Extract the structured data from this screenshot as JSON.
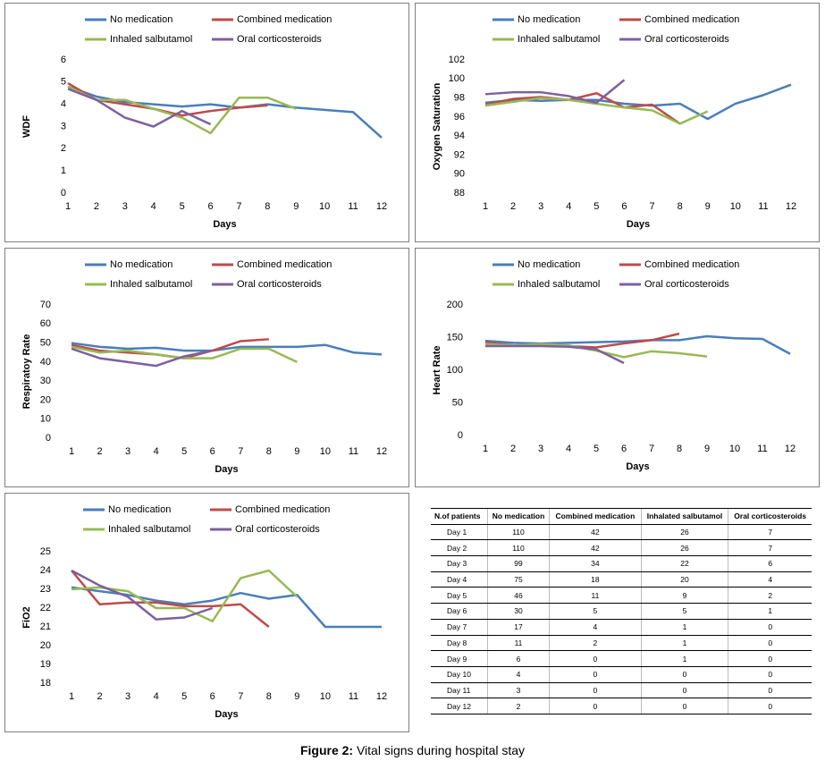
{
  "chart_data": [
    {
      "type": "line",
      "ylabel": "WDF",
      "xlabel": "Days",
      "x": [
        1,
        2,
        3,
        4,
        5,
        6,
        7,
        8,
        9,
        10,
        11,
        12
      ],
      "xlim": [
        0.5,
        12.5
      ],
      "xticks": [
        1,
        2,
        3,
        4,
        5,
        6,
        7,
        8,
        9,
        10,
        11,
        12
      ],
      "ylim": [
        0,
        6
      ],
      "yticks": [
        0,
        1,
        2,
        3,
        4,
        5,
        6
      ],
      "legend": "top",
      "series": [
        {
          "name": "No medication",
          "color": "#4a7ebb",
          "values": [
            4.8,
            4.35,
            4.1,
            4.0,
            3.9,
            4.0,
            3.85,
            4.0,
            3.85,
            3.75,
            3.65,
            2.5
          ]
        },
        {
          "name": "Combined medication",
          "color": "#be4b48",
          "values": [
            4.95,
            4.2,
            4.0,
            3.8,
            3.5,
            3.7,
            3.85,
            3.95,
            null,
            null,
            null,
            null
          ]
        },
        {
          "name": "Inhaled salbutamol",
          "color": "#98b954",
          "values": [
            4.8,
            4.2,
            4.2,
            3.8,
            3.4,
            2.7,
            4.3,
            4.3,
            3.8,
            null,
            null,
            null
          ]
        },
        {
          "name": "Oral corticosteroids",
          "color": "#7d60a0",
          "values": [
            4.7,
            4.2,
            3.4,
            3.0,
            3.7,
            3.1,
            null,
            null,
            null,
            null,
            null,
            null
          ]
        }
      ]
    },
    {
      "type": "line",
      "ylabel": "Oxygen Saturation",
      "xlabel": "Days",
      "x": [
        1,
        2,
        3,
        4,
        5,
        6,
        7,
        8,
        9,
        10,
        11,
        12
      ],
      "xlim": [
        0.5,
        12.5
      ],
      "xticks": [
        1,
        2,
        3,
        4,
        5,
        6,
        7,
        8,
        9,
        10,
        11,
        12
      ],
      "ylim": [
        88,
        102
      ],
      "yticks": [
        88,
        90,
        92,
        94,
        96,
        98,
        100,
        102
      ],
      "legend": "top",
      "series": [
        {
          "name": "No medication",
          "color": "#4a7ebb",
          "values": [
            97.5,
            97.8,
            97.7,
            97.8,
            97.8,
            97.4,
            97.2,
            97.4,
            95.8,
            97.4,
            98.3,
            99.4
          ]
        },
        {
          "name": "Combined medication",
          "color": "#be4b48",
          "values": [
            97.3,
            97.9,
            98.1,
            97.8,
            98.5,
            97.0,
            97.3,
            95.3,
            null,
            null,
            null,
            null
          ]
        },
        {
          "name": "Inhaled salbutamol",
          "color": "#98b954",
          "values": [
            97.2,
            97.6,
            98.0,
            97.8,
            97.4,
            97.0,
            96.7,
            95.3,
            96.6,
            null,
            null,
            null
          ]
        },
        {
          "name": "Oral corticosteroids",
          "color": "#7d60a0",
          "values": [
            98.4,
            98.6,
            98.6,
            98.2,
            97.5,
            99.9,
            null,
            null,
            null,
            null,
            null,
            null
          ]
        }
      ]
    },
    {
      "type": "line",
      "ylabel": "Respiratoy Rate",
      "xlabel": "Days",
      "x": [
        1,
        2,
        3,
        4,
        5,
        6,
        7,
        8,
        9,
        10,
        11,
        12
      ],
      "xlim": [
        0.5,
        12.5
      ],
      "xticks": [
        1,
        2,
        3,
        4,
        5,
        6,
        7,
        8,
        9,
        10,
        11,
        12
      ],
      "ylim": [
        0,
        70
      ],
      "yticks": [
        0,
        10,
        20,
        30,
        40,
        50,
        60,
        70
      ],
      "legend": "top",
      "series": [
        {
          "name": "No medication",
          "color": "#4a7ebb",
          "values": [
            50,
            48,
            47,
            47.5,
            46,
            46,
            48,
            48,
            48,
            49,
            45,
            44
          ]
        },
        {
          "name": "Combined medication",
          "color": "#be4b48",
          "values": [
            49,
            46,
            45,
            44,
            42,
            46,
            51,
            52,
            null,
            null,
            null,
            null
          ]
        },
        {
          "name": "Inhaled salbutamol",
          "color": "#98b954",
          "values": [
            48,
            45,
            46,
            44,
            42,
            42,
            47,
            47,
            40,
            null,
            null,
            null
          ]
        },
        {
          "name": "Oral corticosteroids",
          "color": "#7d60a0",
          "values": [
            47,
            42,
            40,
            38,
            43,
            46,
            null,
            null,
            null,
            null,
            null,
            null
          ]
        }
      ]
    },
    {
      "type": "line",
      "ylabel": "Heart Rate",
      "xlabel": "Days",
      "x": [
        1,
        2,
        3,
        4,
        5,
        6,
        7,
        8,
        9,
        10,
        11,
        12
      ],
      "xlim": [
        0.5,
        12.5
      ],
      "xticks": [
        1,
        2,
        3,
        4,
        5,
        6,
        7,
        8,
        9,
        10,
        11,
        12
      ],
      "ylim": [
        0,
        200
      ],
      "yticks": [
        0,
        50,
        100,
        150,
        200
      ],
      "legend": "top",
      "series": [
        {
          "name": "No medication",
          "color": "#4a7ebb",
          "values": [
            145,
            142,
            141,
            142,
            143,
            144,
            146,
            146,
            152,
            149,
            148,
            125
          ]
        },
        {
          "name": "Combined medication",
          "color": "#be4b48",
          "values": [
            143,
            138,
            138,
            137,
            135,
            141,
            146,
            156,
            null,
            null,
            null,
            null
          ]
        },
        {
          "name": "Inhaled salbutamol",
          "color": "#98b954",
          "values": [
            140,
            138,
            140,
            138,
            130,
            120,
            129,
            126,
            121,
            null,
            null,
            null
          ]
        },
        {
          "name": "Oral corticosteroids",
          "color": "#7d60a0",
          "values": [
            137,
            137,
            137,
            136,
            132,
            111,
            null,
            null,
            null,
            null,
            null,
            null
          ]
        }
      ]
    },
    {
      "type": "line",
      "ylabel": "FiO2",
      "xlabel": "Days",
      "x": [
        1,
        2,
        3,
        4,
        5,
        6,
        7,
        8,
        9,
        10,
        11,
        12
      ],
      "xlim": [
        0.5,
        12.5
      ],
      "xticks": [
        1,
        2,
        3,
        4,
        5,
        6,
        7,
        8,
        9,
        10,
        11,
        12
      ],
      "ylim": [
        18,
        25
      ],
      "yticks": [
        18,
        19,
        20,
        21,
        22,
        23,
        24,
        25
      ],
      "legend": "top",
      "series": [
        {
          "name": "No medication",
          "color": "#4a7ebb",
          "values": [
            23.1,
            22.9,
            22.7,
            22.4,
            22.2,
            22.4,
            22.8,
            22.5,
            22.7,
            21,
            21,
            21
          ]
        },
        {
          "name": "Combined medication",
          "color": "#be4b48",
          "values": [
            24,
            22.2,
            22.3,
            22.3,
            22.1,
            22.1,
            22.2,
            21,
            null,
            null,
            null,
            null
          ]
        },
        {
          "name": "Inhaled salbutamol",
          "color": "#98b954",
          "values": [
            23,
            23.1,
            22.9,
            22.0,
            22.0,
            21.3,
            23.6,
            24.0,
            22.6,
            null,
            null,
            null
          ]
        },
        {
          "name": "Oral corticosteroids",
          "color": "#7d60a0",
          "values": [
            24,
            23.2,
            22.6,
            21.4,
            21.5,
            22.0,
            null,
            null,
            null,
            null,
            null,
            null
          ]
        }
      ]
    }
  ],
  "table": {
    "header": [
      "N.of patients",
      "No medication",
      "Combined medication",
      "Inhalated salbutamol",
      "Oral corticosteroids"
    ],
    "rows": [
      [
        "Day 1",
        110,
        42,
        26,
        7
      ],
      [
        "Day 2",
        110,
        42,
        26,
        7
      ],
      [
        "Day 3",
        99,
        34,
        22,
        6
      ],
      [
        "Day 4",
        75,
        18,
        20,
        4
      ],
      [
        "Day 5",
        46,
        11,
        9,
        2
      ],
      [
        "Day 6",
        30,
        5,
        5,
        1
      ],
      [
        "Day 7",
        17,
        4,
        1,
        0
      ],
      [
        "Day 8",
        11,
        2,
        1,
        0
      ],
      [
        "Day 9",
        6,
        0,
        1,
        0
      ],
      [
        "Day 10",
        4,
        0,
        0,
        0
      ],
      [
        "Day 11",
        3,
        0,
        0,
        0
      ],
      [
        "Day 12",
        2,
        0,
        0,
        0
      ]
    ]
  },
  "caption": {
    "label": "Figure 2:",
    "text": "Vital signs during hospital stay"
  }
}
